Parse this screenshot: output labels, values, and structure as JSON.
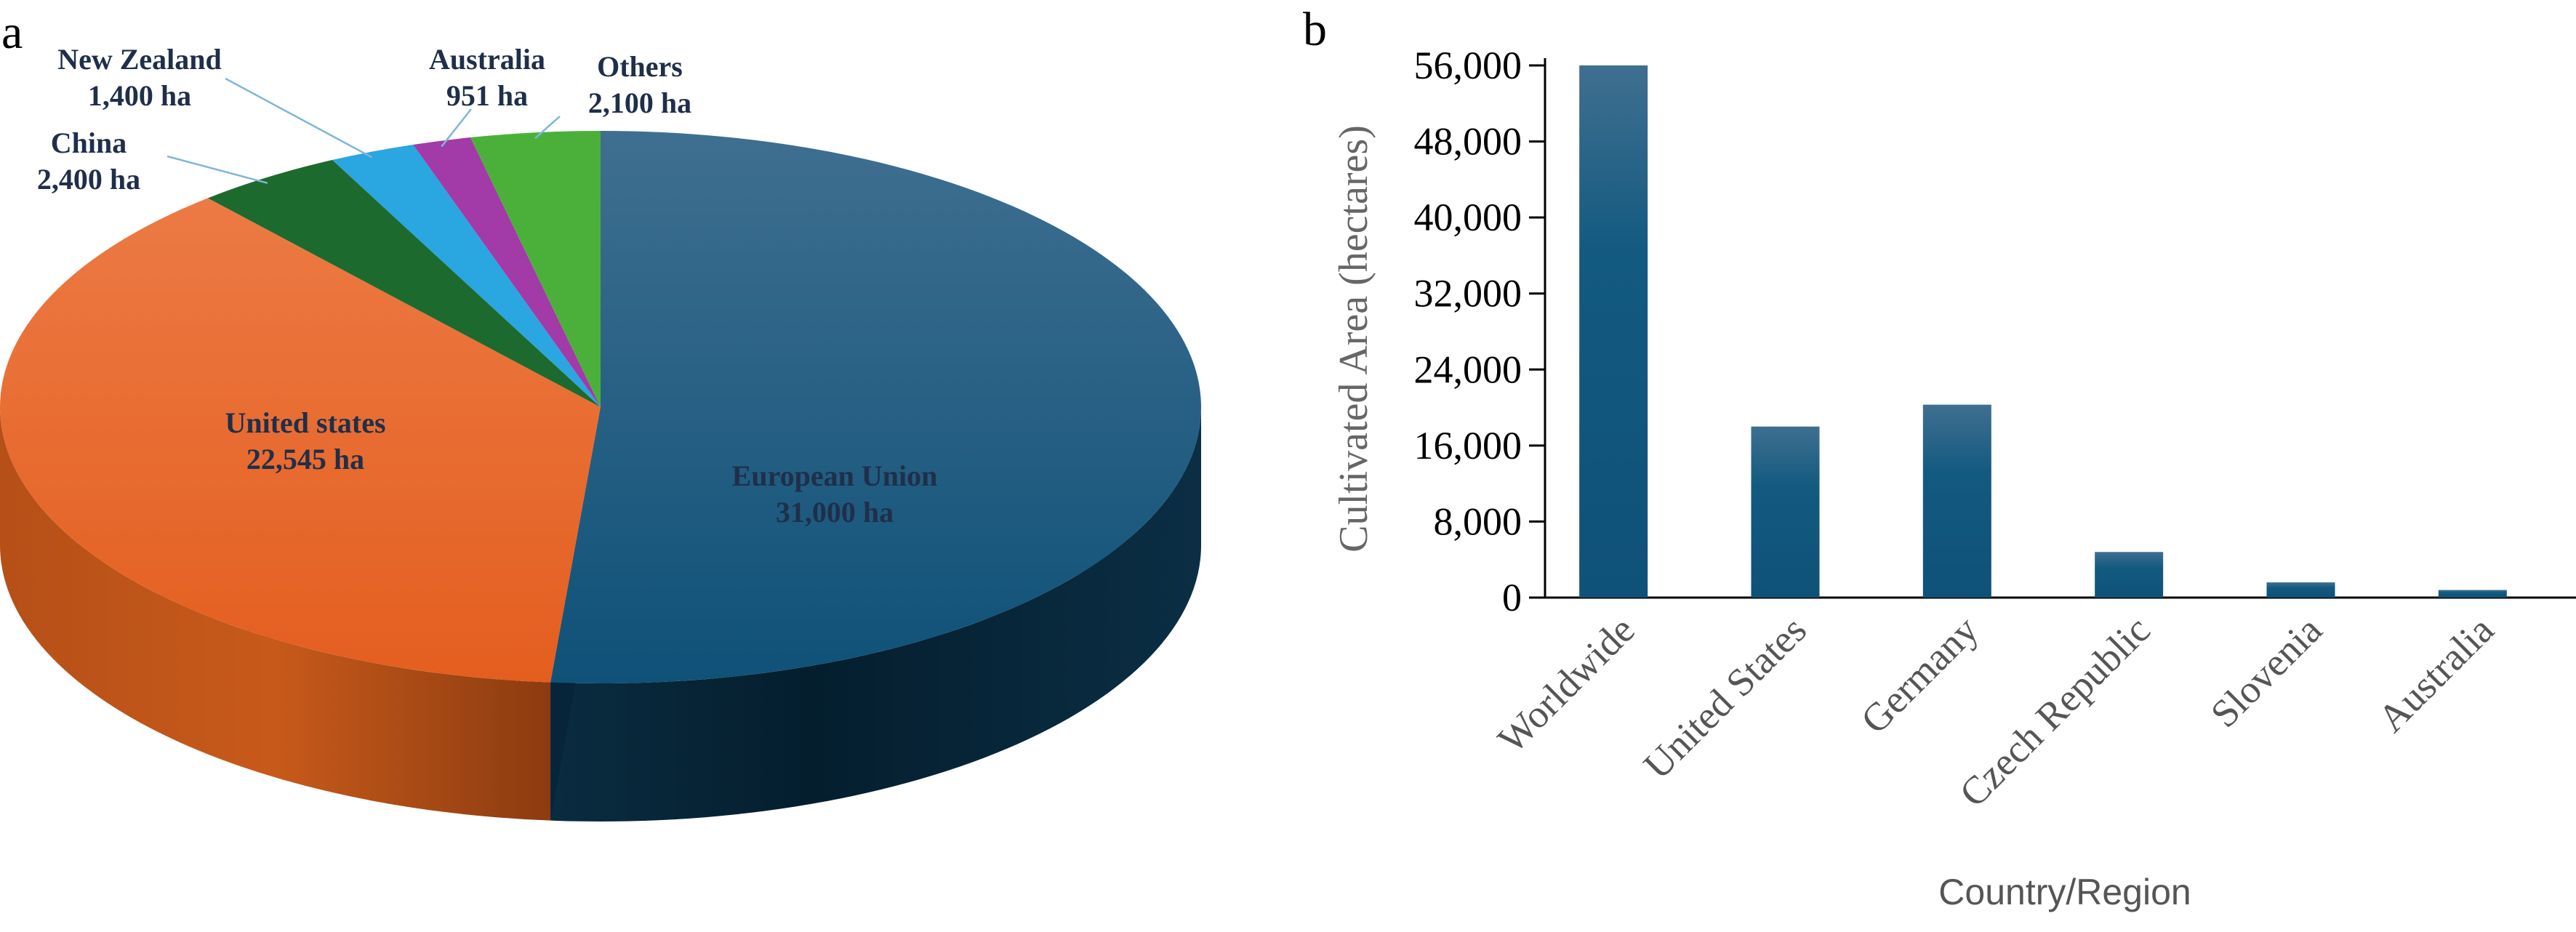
{
  "panel_a_label": "a",
  "panel_b_label": "b",
  "chart_data": [
    {
      "type": "pie",
      "title": "",
      "slices": [
        {
          "label": "European Union",
          "value": 31000,
          "value_label": "31,000 ha",
          "color": "#135a80"
        },
        {
          "label": "United states",
          "value": 22545,
          "value_label": "22,545 ha",
          "color": "#e8692a"
        },
        {
          "label": "China",
          "value": 2400,
          "value_label": "2,400 ha",
          "color": "#1d6a2e"
        },
        {
          "label": "New Zealand",
          "value": 1400,
          "value_label": "1,400 ha",
          "color": "#2aa6e0"
        },
        {
          "label": "Australia",
          "value": 951,
          "value_label": "951 ha",
          "color": "#a23aa8"
        },
        {
          "label": "Others",
          "value": 2100,
          "value_label": "2,100 ha",
          "color": "#4bb03a"
        }
      ]
    },
    {
      "type": "bar",
      "title": "",
      "xlabel": "Country/Region",
      "ylabel": "Cultivated Area (hectares)",
      "categories": [
        "Worldwide",
        "United States",
        "Germany",
        "Czech Republic",
        "Slovenia",
        "Australia"
      ],
      "values": [
        56000,
        18000,
        20300,
        4800,
        1600,
        800
      ],
      "ylim": [
        0,
        56000
      ],
      "yticks": [
        0,
        8000,
        16000,
        24000,
        32000,
        40000,
        48000,
        56000
      ],
      "ytick_labels": [
        "0",
        "8,000",
        "16,000",
        "24,000",
        "32,000",
        "40,000",
        "48,000",
        "56,000"
      ],
      "bar_color": "#135a80",
      "grid": false
    }
  ]
}
